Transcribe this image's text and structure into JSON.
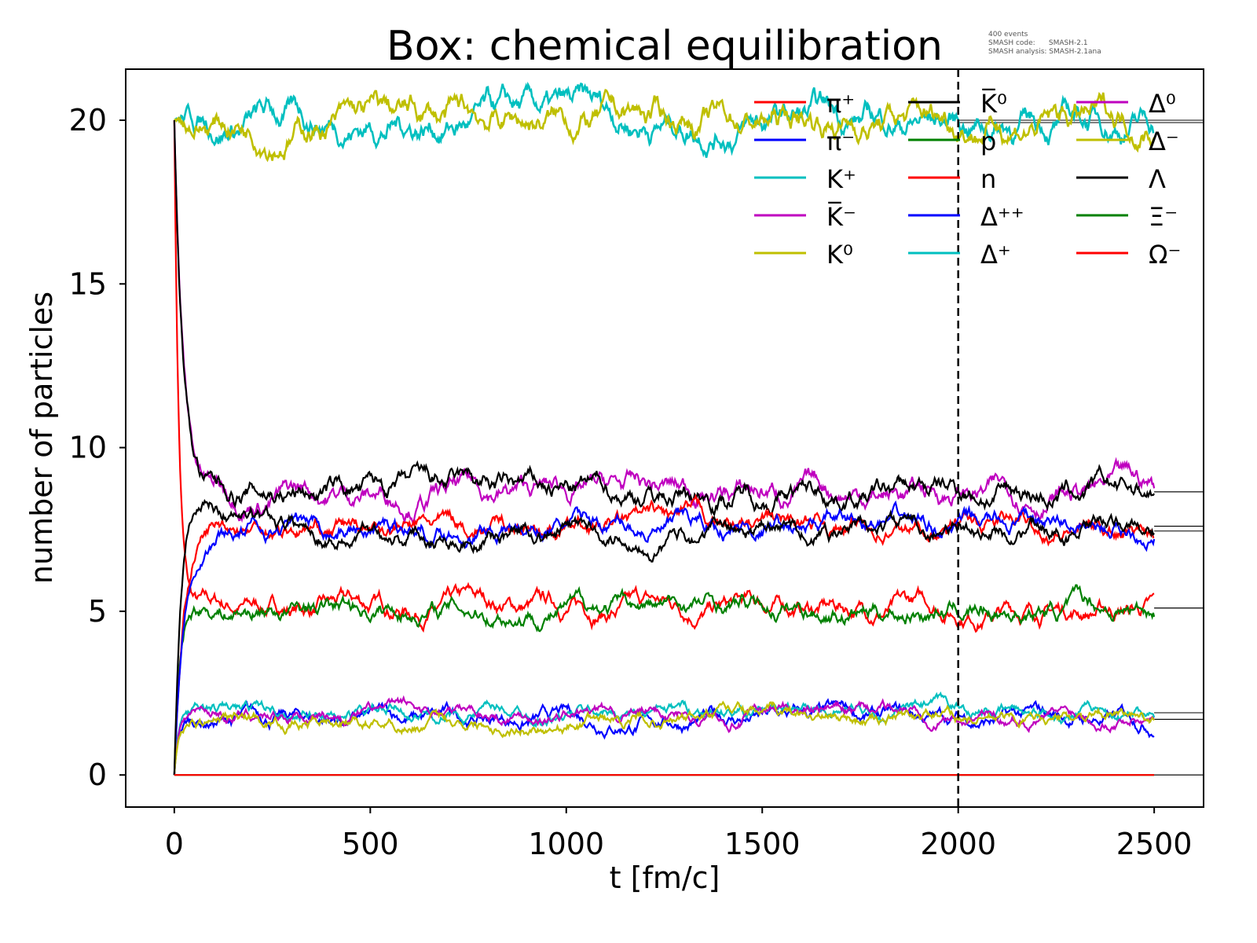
{
  "chart_data": {
    "type": "line",
    "title": "Box: chemical equilibration",
    "xlabel": "t [fm/c]",
    "ylabel": "number of particles",
    "xlim": [
      -124,
      2626
    ],
    "ylim": [
      -0.98,
      21.56
    ],
    "xticks": [
      0,
      500,
      1000,
      1500,
      2000,
      2500
    ],
    "yticks": [
      0,
      5,
      10,
      15,
      20
    ],
    "grid": false,
    "legend_placement": "top-right",
    "vline": 2000,
    "annotation": [
      "400 events",
      "SMASH code:      SMASH-2.1",
      "SMASH analysis: SMASH-2.1ana"
    ],
    "series": [
      {
        "name": "π⁺",
        "color": "#ff0000",
        "initial": 20,
        "equilibrium": 5.1,
        "tau": 12,
        "noise": 0.1
      },
      {
        "name": "π⁻",
        "color": "#0000ff",
        "initial": 0,
        "equilibrium": 1.7,
        "tau": 10,
        "noise": 0.08
      },
      {
        "name": "K⁺",
        "color": "#00bfbf",
        "initial": 20,
        "equilibrium": 20.0,
        "tau": 1,
        "noise": 0.15
      },
      {
        "name": "K̅⁻",
        "color": "#bf00bf",
        "initial": 20,
        "equilibrium": 8.65,
        "tau": 22,
        "noise": 0.12
      },
      {
        "name": "K⁰",
        "color": "#bfbf00",
        "initial": 20,
        "equilibrium": 20.0,
        "tau": 1,
        "noise": 0.15
      },
      {
        "name": "K̅⁰",
        "color": "#000000",
        "initial": 20,
        "equilibrium": 8.65,
        "tau": 22,
        "noise": 0.12
      },
      {
        "name": "p",
        "color": "#008000",
        "initial": 0,
        "equilibrium": 5.1,
        "tau": 14,
        "noise": 0.1
      },
      {
        "name": "n",
        "color": "#ff0000",
        "initial": 0,
        "equilibrium": 7.6,
        "tau": 25,
        "noise": 0.1
      },
      {
        "name": "Δ⁺⁺",
        "color": "#0000ff",
        "initial": 0,
        "equilibrium": 7.6,
        "tau": 25,
        "noise": 0.1
      },
      {
        "name": "Δ⁺",
        "color": "#00bfbf",
        "initial": 0,
        "equilibrium": 1.9,
        "tau": 10,
        "noise": 0.07
      },
      {
        "name": "Δ⁰",
        "color": "#bf00bf",
        "initial": 0,
        "equilibrium": 1.9,
        "tau": 10,
        "noise": 0.07
      },
      {
        "name": "Δ⁻",
        "color": "#bfbf00",
        "initial": 0,
        "equilibrium": 1.7,
        "tau": 10,
        "noise": 0.07
      },
      {
        "name": "Λ",
        "color": "#000000",
        "initial": 0,
        "equilibrium": 7.45,
        "tau": 20,
        "noise": 0.1,
        "overshoot": 8.6
      },
      {
        "name": "Ξ⁻",
        "color": "#008000",
        "initial": 0,
        "equilibrium": 0,
        "tau": 1,
        "noise": 0
      },
      {
        "name": "Ω⁻",
        "color": "#ff0000",
        "initial": 0,
        "equilibrium": 0,
        "tau": 1,
        "noise": 0
      }
    ]
  }
}
